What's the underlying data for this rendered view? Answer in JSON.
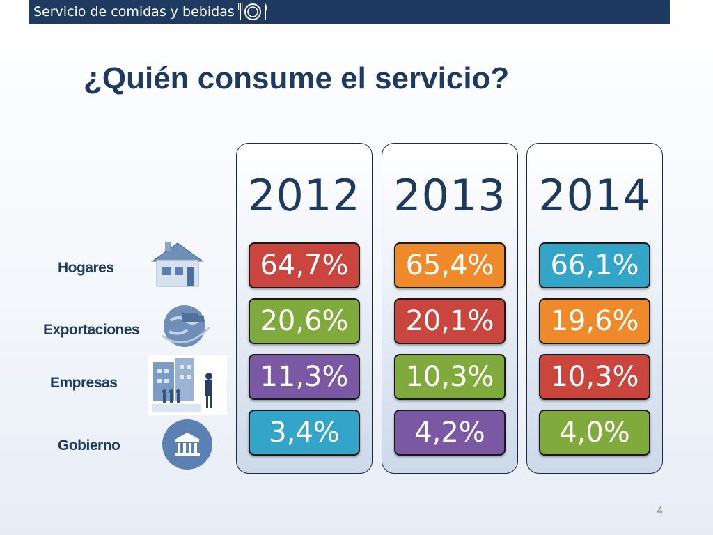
{
  "header": {
    "text": "Servicio de comidas y bebidas"
  },
  "title": "¿Quién consume el servicio?",
  "rows": [
    {
      "label": "Hogares",
      "icon": "house-icon"
    },
    {
      "label": "Exportaciones",
      "icon": "globe-truck-icon"
    },
    {
      "label": "Empresas",
      "icon": "buildings-people-icon"
    },
    {
      "label": "Gobierno",
      "icon": "government-building-icon"
    }
  ],
  "columns": [
    {
      "year": "2012",
      "cells": [
        {
          "value": "64,7%",
          "color": "#c9453d"
        },
        {
          "value": "20,6%",
          "color": "#80aa3b"
        },
        {
          "value": "11,3%",
          "color": "#7a58a4"
        },
        {
          "value": "3,4%",
          "color": "#33a5c9"
        }
      ]
    },
    {
      "year": "2013",
      "cells": [
        {
          "value": "65,4%",
          "color": "#ef8a2a"
        },
        {
          "value": "20,1%",
          "color": "#c9453d"
        },
        {
          "value": "10,3%",
          "color": "#80aa3b"
        },
        {
          "value": "4,2%",
          "color": "#7a58a4"
        }
      ]
    },
    {
      "year": "2014",
      "cells": [
        {
          "value": "66,1%",
          "color": "#33a5c9"
        },
        {
          "value": "19,6%",
          "color": "#ef8a2a"
        },
        {
          "value": "10,3%",
          "color": "#c9453d"
        },
        {
          "value": "4,0%",
          "color": "#80aa3b"
        }
      ]
    }
  ],
  "page_number": "4"
}
